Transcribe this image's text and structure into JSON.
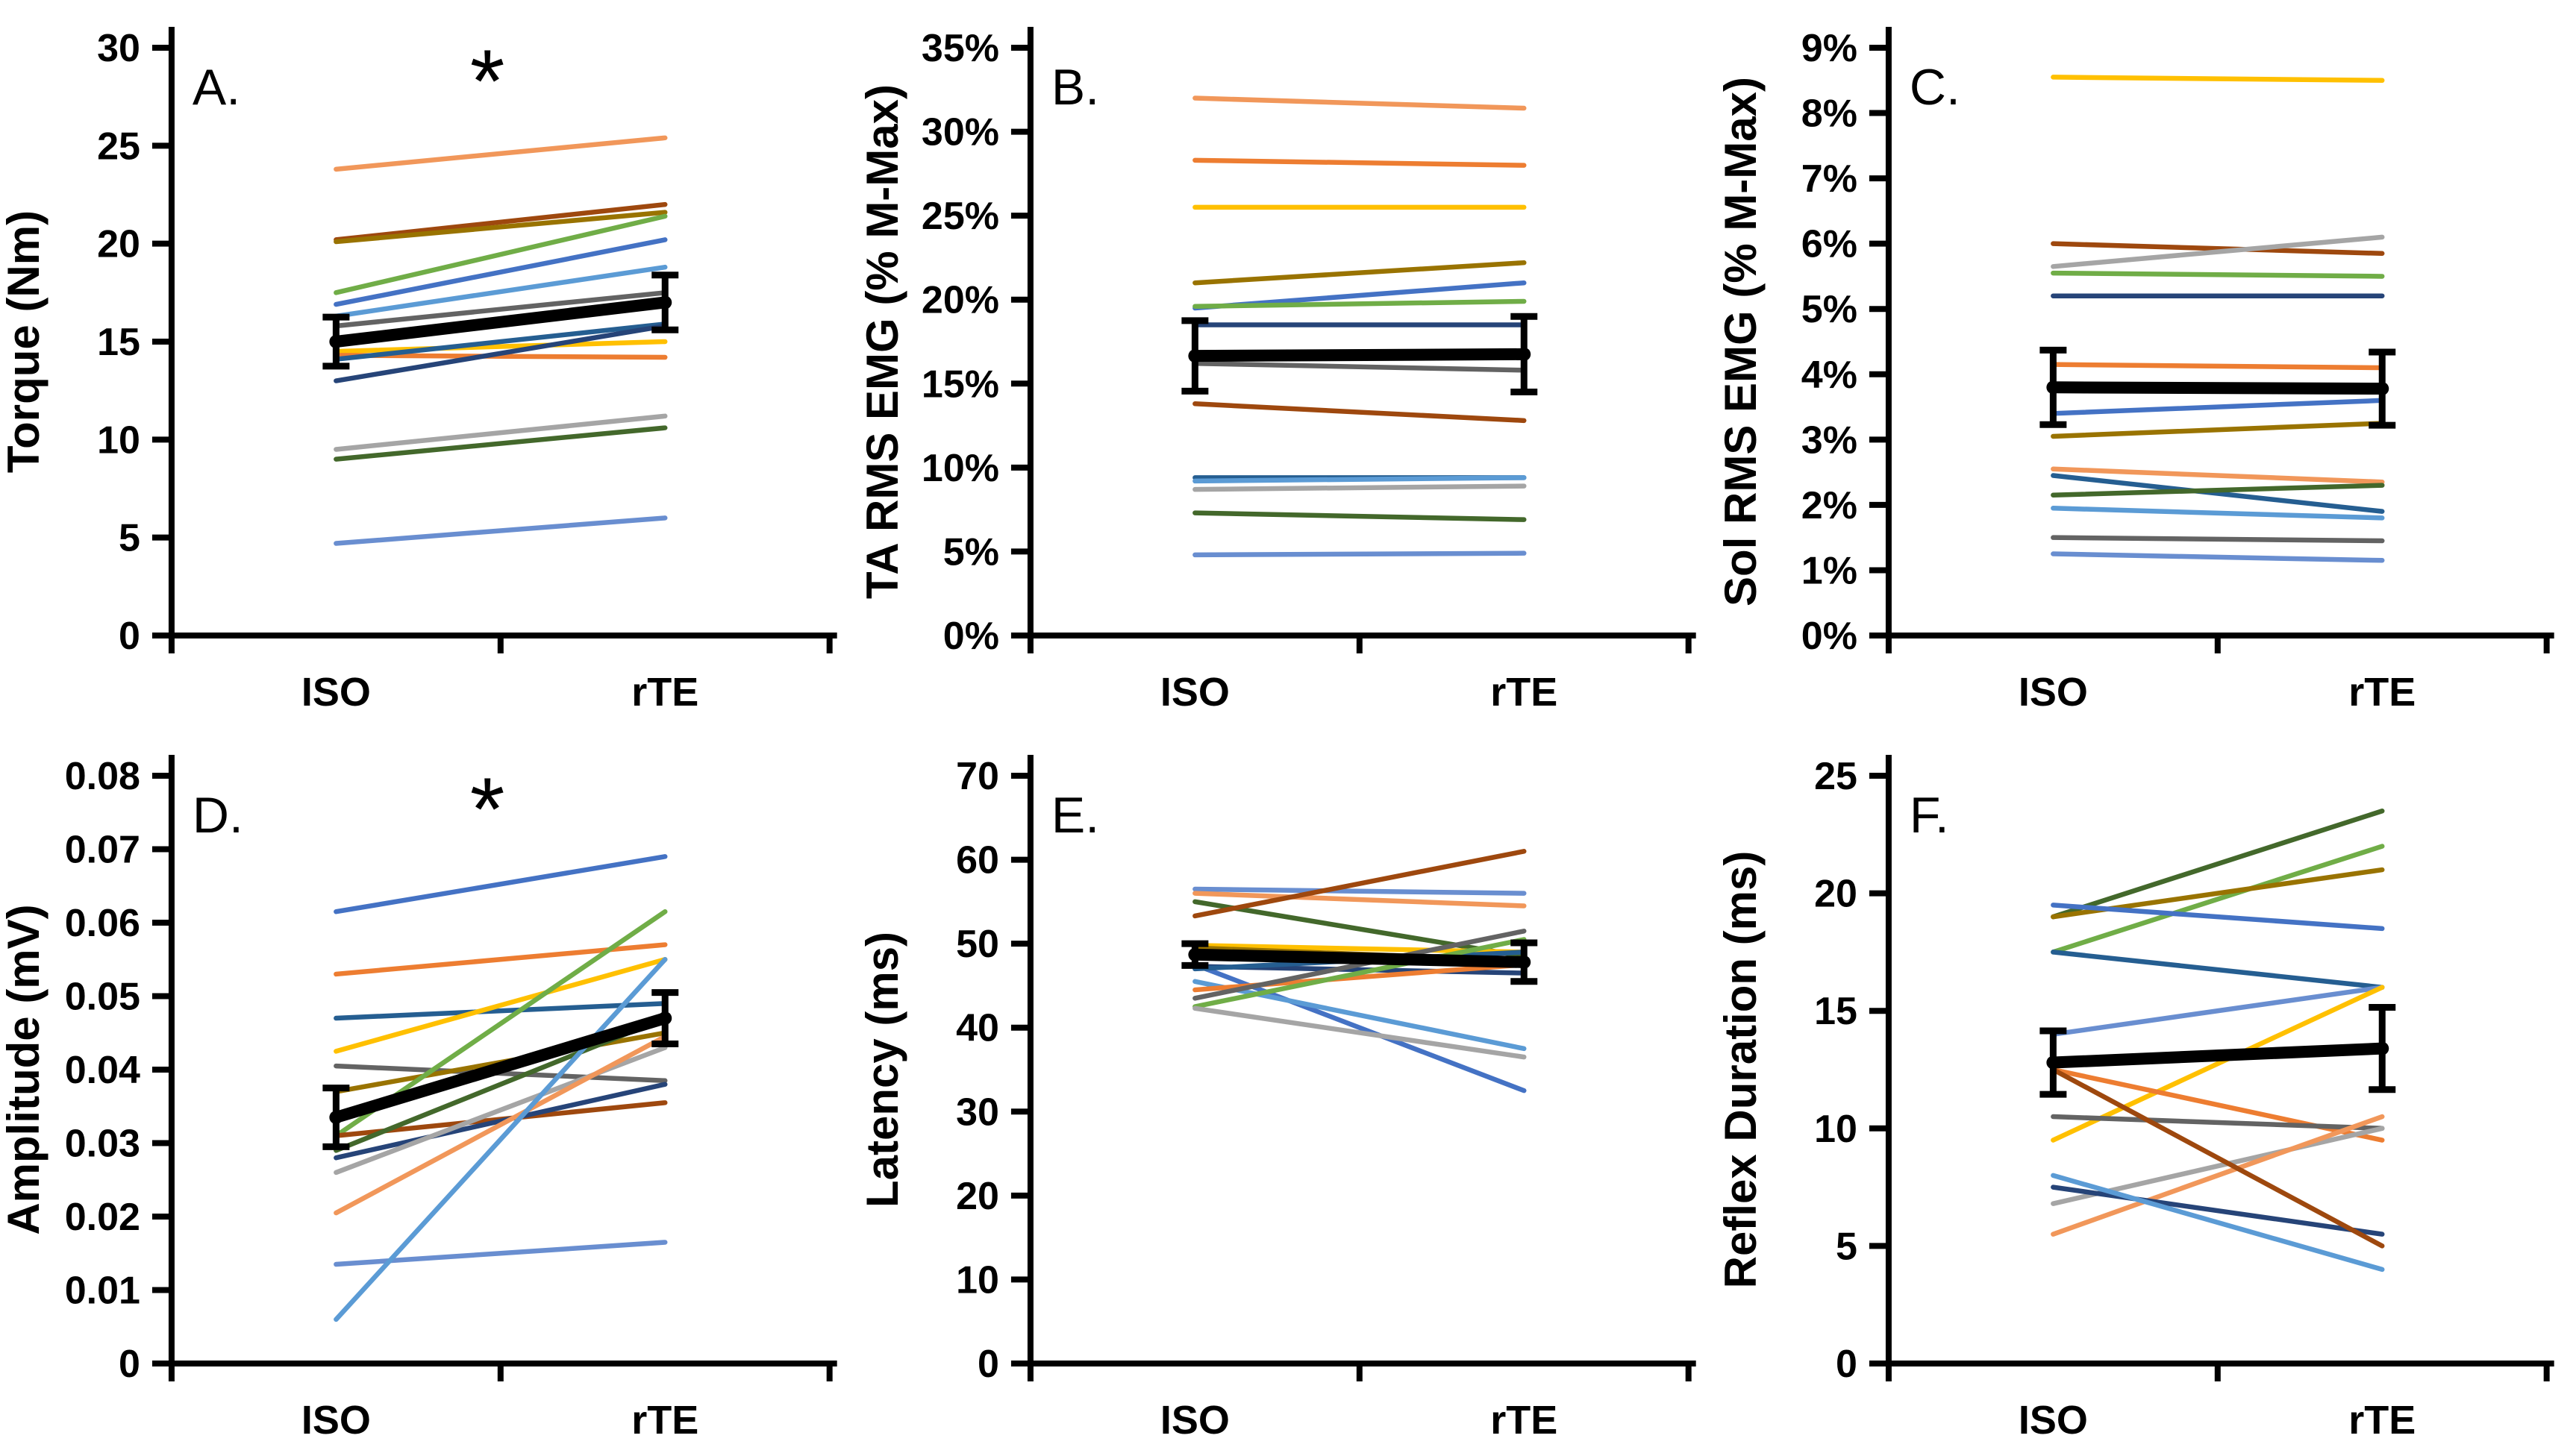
{
  "figure": {
    "background": "#FFFFFF",
    "axis_color": "#000000",
    "text_color": "#000000",
    "mean_line_color": "#000000",
    "description_visible_text_only": true
  },
  "chart_data": [
    {
      "panel": "A",
      "panel_label": "A.",
      "type": "line",
      "title": "",
      "ylabel": "Torque (Nm)",
      "xlabel": "",
      "categories": [
        "ISO",
        "rTE"
      ],
      "ylim": [
        0,
        30
      ],
      "ytick_labels": [
        "0",
        "5",
        "10",
        "15",
        "20",
        "25",
        "30"
      ],
      "grid": false,
      "legend": "none",
      "significance_marker": "*",
      "mean_series": {
        "color": "#000000",
        "values": [
          15.0,
          17.0
        ],
        "error": [
          1.25,
          1.4
        ]
      },
      "series": [
        {
          "color": "#F1975A",
          "values": [
            23.8,
            25.4
          ]
        },
        {
          "color": "#9E480E",
          "values": [
            20.2,
            22.0
          ]
        },
        {
          "color": "#997300",
          "values": [
            20.1,
            21.6
          ]
        },
        {
          "color": "#70AD47",
          "values": [
            17.5,
            21.4
          ]
        },
        {
          "color": "#4472C4",
          "values": [
            16.9,
            20.2
          ]
        },
        {
          "color": "#5B9BD5",
          "values": [
            16.3,
            18.8
          ]
        },
        {
          "color": "#636363",
          "values": [
            15.8,
            17.5
          ]
        },
        {
          "color": "#FFC000",
          "values": [
            14.5,
            15.0
          ]
        },
        {
          "color": "#ED7D31",
          "values": [
            14.3,
            14.2
          ]
        },
        {
          "color": "#255E91",
          "values": [
            14.1,
            15.9
          ]
        },
        {
          "color": "#264478",
          "values": [
            13.0,
            15.8
          ]
        },
        {
          "color": "#A5A5A5",
          "values": [
            9.5,
            11.2
          ]
        },
        {
          "color": "#43682B",
          "values": [
            9.0,
            10.6
          ]
        },
        {
          "color": "#698ED0",
          "values": [
            4.7,
            6.0
          ]
        }
      ]
    },
    {
      "panel": "B",
      "panel_label": "B.",
      "type": "line",
      "title": "",
      "ylabel": "TA RMS EMG (% M-Max)",
      "xlabel": "",
      "categories": [
        "ISO",
        "rTE"
      ],
      "ylim": [
        0,
        35
      ],
      "ytick_labels": [
        "0%",
        "5%",
        "10%",
        "15%",
        "20%",
        "25%",
        "30%",
        "35%"
      ],
      "grid": false,
      "legend": "none",
      "significance_marker": "",
      "mean_series": {
        "color": "#000000",
        "values": [
          16.65,
          16.75
        ],
        "error": [
          2.1,
          2.25
        ]
      },
      "series": [
        {
          "color": "#F1975A",
          "values": [
            32.0,
            31.4
          ]
        },
        {
          "color": "#ED7D31",
          "values": [
            28.3,
            28.0
          ]
        },
        {
          "color": "#FFC000",
          "values": [
            25.5,
            25.5
          ]
        },
        {
          "color": "#997300",
          "values": [
            21.0,
            22.2
          ]
        },
        {
          "color": "#4472C4",
          "values": [
            19.5,
            21.0
          ]
        },
        {
          "color": "#70AD47",
          "values": [
            19.6,
            19.9
          ]
        },
        {
          "color": "#264478",
          "values": [
            18.5,
            18.5
          ]
        },
        {
          "color": "#636363",
          "values": [
            16.2,
            15.8
          ]
        },
        {
          "color": "#9E480E",
          "values": [
            13.8,
            12.8
          ]
        },
        {
          "color": "#255E91",
          "values": [
            9.4,
            9.4
          ]
        },
        {
          "color": "#5B9BD5",
          "values": [
            9.2,
            9.4
          ]
        },
        {
          "color": "#A5A5A5",
          "values": [
            8.7,
            8.9
          ]
        },
        {
          "color": "#43682B",
          "values": [
            7.3,
            6.9
          ]
        },
        {
          "color": "#698ED0",
          "values": [
            4.8,
            4.9
          ]
        }
      ]
    },
    {
      "panel": "C",
      "panel_label": "C.",
      "type": "line",
      "title": "",
      "ylabel": "Sol RMS EMG (% M-Max)",
      "xlabel": "",
      "categories": [
        "ISO",
        "rTE"
      ],
      "ylim": [
        0,
        9
      ],
      "ytick_labels": [
        "0%",
        "1%",
        "2%",
        "3%",
        "4%",
        "5%",
        "6%",
        "7%",
        "8%",
        "9%"
      ],
      "grid": false,
      "legend": "none",
      "significance_marker": "",
      "mean_series": {
        "color": "#000000",
        "values": [
          3.8,
          3.78
        ],
        "error": [
          0.57,
          0.56
        ]
      },
      "series": [
        {
          "color": "#FFC000",
          "values": [
            8.55,
            8.5
          ]
        },
        {
          "color": "#9E480E",
          "values": [
            6.0,
            5.85
          ]
        },
        {
          "color": "#A5A5A5",
          "values": [
            5.65,
            6.1
          ]
        },
        {
          "color": "#70AD47",
          "values": [
            5.55,
            5.5
          ]
        },
        {
          "color": "#264478",
          "values": [
            5.2,
            5.2
          ]
        },
        {
          "color": "#ED7D31",
          "values": [
            4.15,
            4.1
          ]
        },
        {
          "color": "#4472C4",
          "values": [
            3.4,
            3.6
          ]
        },
        {
          "color": "#997300",
          "values": [
            3.05,
            3.25
          ]
        },
        {
          "color": "#F1975A",
          "values": [
            2.55,
            2.35
          ]
        },
        {
          "color": "#255E91",
          "values": [
            2.45,
            1.9
          ]
        },
        {
          "color": "#43682B",
          "values": [
            2.15,
            2.3
          ]
        },
        {
          "color": "#5B9BD5",
          "values": [
            1.95,
            1.8
          ]
        },
        {
          "color": "#636363",
          "values": [
            1.5,
            1.45
          ]
        },
        {
          "color": "#698ED0",
          "values": [
            1.25,
            1.15
          ]
        }
      ]
    },
    {
      "panel": "D",
      "panel_label": "D.",
      "type": "line",
      "title": "",
      "ylabel": "Amplitude (mV)",
      "xlabel": "",
      "categories": [
        "ISO",
        "rTE"
      ],
      "ylim": [
        0,
        0.08
      ],
      "ytick_labels": [
        "0",
        "0.01",
        "0.02",
        "0.03",
        "0.04",
        "0.05",
        "0.06",
        "0.07",
        "0.08"
      ],
      "grid": false,
      "legend": "none",
      "significance_marker": "*",
      "mean_series": {
        "color": "#000000",
        "values": [
          0.0335,
          0.047
        ],
        "error": [
          0.004,
          0.0035
        ]
      },
      "series": [
        {
          "color": "#4472C4",
          "values": [
            0.0615,
            0.069
          ]
        },
        {
          "color": "#ED7D31",
          "values": [
            0.053,
            0.057
          ]
        },
        {
          "color": "#255E91",
          "values": [
            0.047,
            0.049
          ]
        },
        {
          "color": "#FFC000",
          "values": [
            0.0425,
            0.055
          ]
        },
        {
          "color": "#636363",
          "values": [
            0.0405,
            0.0385
          ]
        },
        {
          "color": "#997300",
          "values": [
            0.037,
            0.045
          ]
        },
        {
          "color": "#70AD47",
          "values": [
            0.031,
            0.0615
          ]
        },
        {
          "color": "#9E480E",
          "values": [
            0.031,
            0.0355
          ]
        },
        {
          "color": "#43682B",
          "values": [
            0.029,
            0.047
          ]
        },
        {
          "color": "#264478",
          "values": [
            0.028,
            0.038
          ]
        },
        {
          "color": "#A5A5A5",
          "values": [
            0.026,
            0.043
          ]
        },
        {
          "color": "#F1975A",
          "values": [
            0.0205,
            0.0445
          ]
        },
        {
          "color": "#698ED0",
          "values": [
            0.0135,
            0.0165
          ]
        },
        {
          "color": "#5B9BD5",
          "values": [
            0.006,
            0.055
          ]
        }
      ]
    },
    {
      "panel": "E",
      "panel_label": "E.",
      "type": "line",
      "title": "",
      "ylabel": "Latency (ms)",
      "xlabel": "",
      "categories": [
        "ISO",
        "rTE"
      ],
      "ylim": [
        0,
        70
      ],
      "ytick_labels": [
        "0",
        "10",
        "20",
        "30",
        "40",
        "50",
        "60",
        "70"
      ],
      "grid": false,
      "legend": "none",
      "significance_marker": "",
      "mean_series": {
        "color": "#000000",
        "values": [
          48.7,
          47.8
        ],
        "error": [
          1.3,
          2.3
        ]
      },
      "series": [
        {
          "color": "#698ED0",
          "values": [
            56.5,
            56.0
          ]
        },
        {
          "color": "#F1975A",
          "values": [
            56.0,
            54.5
          ]
        },
        {
          "color": "#43682B",
          "values": [
            55.0,
            48.5
          ]
        },
        {
          "color": "#9E480E",
          "values": [
            53.3,
            61.0
          ]
        },
        {
          "color": "#FFC000",
          "values": [
            49.8,
            49.0
          ]
        },
        {
          "color": "#997300",
          "values": [
            49.5,
            48.0
          ]
        },
        {
          "color": "#4472C4",
          "values": [
            47.5,
            32.5
          ]
        },
        {
          "color": "#264478",
          "values": [
            47.3,
            46.5
          ]
        },
        {
          "color": "#255E91",
          "values": [
            47.0,
            49.0
          ]
        },
        {
          "color": "#5B9BD5",
          "values": [
            45.5,
            37.5
          ]
        },
        {
          "color": "#ED7D31",
          "values": [
            44.5,
            47.5
          ]
        },
        {
          "color": "#636363",
          "values": [
            43.5,
            51.5
          ]
        },
        {
          "color": "#70AD47",
          "values": [
            42.5,
            50.5
          ]
        },
        {
          "color": "#A5A5A5",
          "values": [
            42.3,
            36.5
          ]
        }
      ]
    },
    {
      "panel": "F",
      "panel_label": "F.",
      "type": "line",
      "title": "",
      "ylabel": "Reflex Duration (ms)",
      "xlabel": "",
      "categories": [
        "ISO",
        "rTE"
      ],
      "ylim": [
        0,
        25
      ],
      "ytick_labels": [
        "0",
        "5",
        "10",
        "15",
        "20",
        "25"
      ],
      "grid": false,
      "legend": "none",
      "significance_marker": "",
      "mean_series": {
        "color": "#000000",
        "values": [
          12.8,
          13.4
        ],
        "error": [
          1.35,
          1.75
        ]
      },
      "series": [
        {
          "color": "#43682B",
          "values": [
            19.0,
            23.5
          ]
        },
        {
          "color": "#70AD47",
          "values": [
            17.5,
            22.0
          ]
        },
        {
          "color": "#997300",
          "values": [
            19.0,
            21.0
          ]
        },
        {
          "color": "#4472C4",
          "values": [
            19.5,
            18.5
          ]
        },
        {
          "color": "#255E91",
          "values": [
            17.5,
            16.0
          ]
        },
        {
          "color": "#698ED0",
          "values": [
            14.0,
            16.0
          ]
        },
        {
          "color": "#FFC000",
          "values": [
            9.5,
            16.0
          ]
        },
        {
          "color": "#ED7D31",
          "values": [
            12.5,
            9.5
          ]
        },
        {
          "color": "#636363",
          "values": [
            10.5,
            10.0
          ]
        },
        {
          "color": "#A5A5A5",
          "values": [
            6.8,
            10.0
          ]
        },
        {
          "color": "#F1975A",
          "values": [
            5.5,
            10.5
          ]
        },
        {
          "color": "#264478",
          "values": [
            7.5,
            5.5
          ]
        },
        {
          "color": "#5B9BD5",
          "values": [
            8.0,
            4.0
          ]
        },
        {
          "color": "#9E480E",
          "values": [
            12.5,
            5.0
          ]
        }
      ]
    }
  ]
}
